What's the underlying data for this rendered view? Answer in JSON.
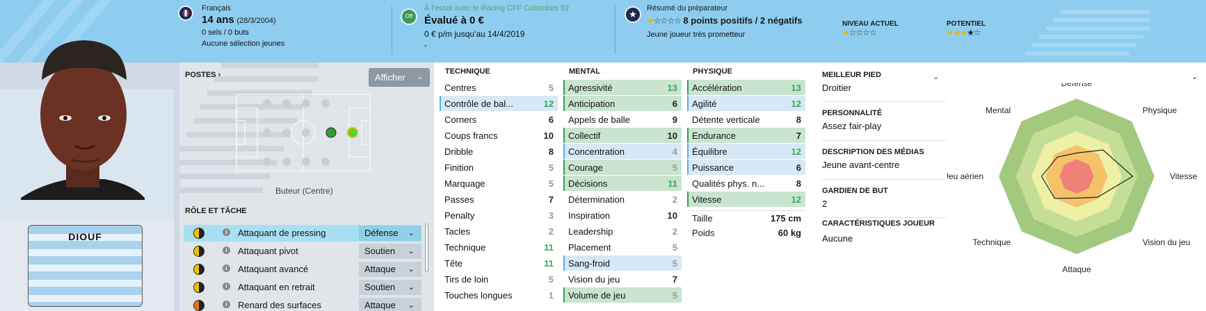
{
  "header": {
    "nationality": "Français",
    "age": "14 ans",
    "birthdate": "(28/3/2004)",
    "caps": "0 sels / 0 buts",
    "youth_caps": "Aucune sélection jeunes",
    "contract_faded": "À l'essai avec le Racing CFF Colombes 92",
    "off_badge": "Off",
    "value": "Évalué à 0 €",
    "wage": "0 € p/m jusqu'au 14/4/2019",
    "dash": "-",
    "coach_summary_title": "Résumé du préparateur",
    "coach_summary_points": "8 points positifs / 2 négatifs",
    "coach_summary_text": "Jeune joueur très prometteur",
    "current_level_title": "NIVEAU ACTUEL",
    "potential_title": "POTENTIEL",
    "current_level_stars": 1,
    "potential_stars": 3.5,
    "coach_stars": 1,
    "colors": {
      "header_bg": "#8ecdf0",
      "accent_green": "#3a9b57"
    }
  },
  "shirt": {
    "name": "DIOUF"
  },
  "positions": {
    "title": "POSTES ›",
    "show_button": "Afficher",
    "position_label": "Buteur (Centre)",
    "role_title": "RÔLE ET TÂCHE",
    "roles": [
      {
        "name": "Attaquant de pressing",
        "duty": "Défense",
        "selected": true
      },
      {
        "name": "Attaquant pivot",
        "duty": "Soutien",
        "selected": false
      },
      {
        "name": "Attaquant avancé",
        "duty": "Attaque",
        "selected": false
      },
      {
        "name": "Attaquant en retrait",
        "duty": "Soutien",
        "selected": false
      },
      {
        "name": "Renard des surfaces",
        "duty": "Attaque",
        "selected": false
      }
    ]
  },
  "attributes": {
    "technique_title": "TECHNIQUE",
    "mental_title": "MENTAL",
    "physique_title": "PHYSIQUE",
    "technique": [
      {
        "name": "Centres",
        "value": "5",
        "hl": "",
        "tone": "lo"
      },
      {
        "name": "Contrôle de bal...",
        "value": "12",
        "hl": "b",
        "tone": "green"
      },
      {
        "name": "Corners",
        "value": "6",
        "hl": "",
        "tone": "mid"
      },
      {
        "name": "Coups francs",
        "value": "10",
        "hl": "",
        "tone": "mid"
      },
      {
        "name": "Dribble",
        "value": "8",
        "hl": "",
        "tone": "mid"
      },
      {
        "name": "Finition",
        "value": "5",
        "hl": "",
        "tone": "lo"
      },
      {
        "name": "Marquage",
        "value": "5",
        "hl": "",
        "tone": "lo"
      },
      {
        "name": "Passes",
        "value": "7",
        "hl": "",
        "tone": "mid"
      },
      {
        "name": "Penalty",
        "value": "3",
        "hl": "",
        "tone": "lo"
      },
      {
        "name": "Tacles",
        "value": "2",
        "hl": "",
        "tone": "lo"
      },
      {
        "name": "Technique",
        "value": "11",
        "hl": "",
        "tone": "green"
      },
      {
        "name": "Tête",
        "value": "11",
        "hl": "",
        "tone": "green"
      },
      {
        "name": "Tirs de loin",
        "value": "5",
        "hl": "",
        "tone": "lo"
      },
      {
        "name": "Touches longues",
        "value": "1",
        "hl": "",
        "tone": "lo"
      }
    ],
    "mental": [
      {
        "name": "Agressivité",
        "value": "13",
        "hl": "g",
        "tone": "green"
      },
      {
        "name": "Anticipation",
        "value": "6",
        "hl": "g",
        "tone": "mid"
      },
      {
        "name": "Appels de balle",
        "value": "9",
        "hl": "",
        "tone": "mid"
      },
      {
        "name": "Collectif",
        "value": "10",
        "hl": "g",
        "tone": "mid"
      },
      {
        "name": "Concentration",
        "value": "4",
        "hl": "b",
        "tone": "lo"
      },
      {
        "name": "Courage",
        "value": "5",
        "hl": "g",
        "tone": "lo"
      },
      {
        "name": "Décisions",
        "value": "11",
        "hl": "g",
        "tone": "green"
      },
      {
        "name": "Détermination",
        "value": "2",
        "hl": "",
        "tone": "lo"
      },
      {
        "name": "Inspiration",
        "value": "10",
        "hl": "",
        "tone": "mid"
      },
      {
        "name": "Leadership",
        "value": "2",
        "hl": "",
        "tone": "lo"
      },
      {
        "name": "Placement",
        "value": "5",
        "hl": "",
        "tone": "lo"
      },
      {
        "name": "Sang-froid",
        "value": "5",
        "hl": "b",
        "tone": "lo"
      },
      {
        "name": "Vision du jeu",
        "value": "7",
        "hl": "",
        "tone": "mid"
      },
      {
        "name": "Volume de jeu",
        "value": "5",
        "hl": "g",
        "tone": "lo"
      }
    ],
    "physique": [
      {
        "name": "Accélération",
        "value": "13",
        "hl": "g",
        "tone": "green"
      },
      {
        "name": "Agilité",
        "value": "12",
        "hl": "b",
        "tone": "green"
      },
      {
        "name": "Détente verticale",
        "value": "8",
        "hl": "",
        "tone": "mid"
      },
      {
        "name": "Endurance",
        "value": "7",
        "hl": "g",
        "tone": "mid"
      },
      {
        "name": "Équilibre",
        "value": "12",
        "hl": "b",
        "tone": "green"
      },
      {
        "name": "Puissance",
        "value": "6",
        "hl": "b",
        "tone": "mid"
      },
      {
        "name": "Qualités phys. n...",
        "value": "8",
        "hl": "",
        "tone": "mid"
      },
      {
        "name": "Vitesse",
        "value": "12",
        "hl": "g",
        "tone": "green"
      }
    ],
    "height_label": "Taille",
    "height_value": "175 cm",
    "weight_label": "Poids",
    "weight_value": "60 kg"
  },
  "info": {
    "best_foot_title": "MEILLEUR PIED",
    "best_foot": "Droitier",
    "personality_title": "PERSONNALITÉ",
    "personality": "Assez fair-play",
    "media_title": "DESCRIPTION DES MÉDIAS",
    "media": "Jeune avant-centre",
    "gk_title": "GARDIEN DE BUT",
    "gk": "2",
    "traits_title": "CARACTÉRISTIQUES JOUEUR",
    "traits": "Aucune"
  },
  "radar": {
    "labels": [
      "Défense",
      "Physique",
      "Vitesse",
      "Vision du jeu",
      "Attaque",
      "Technique",
      "Jeu aérien",
      "Mental"
    ],
    "values": [
      0.3,
      0.48,
      0.72,
      0.38,
      0.28,
      0.4,
      0.45,
      0.35
    ]
  }
}
